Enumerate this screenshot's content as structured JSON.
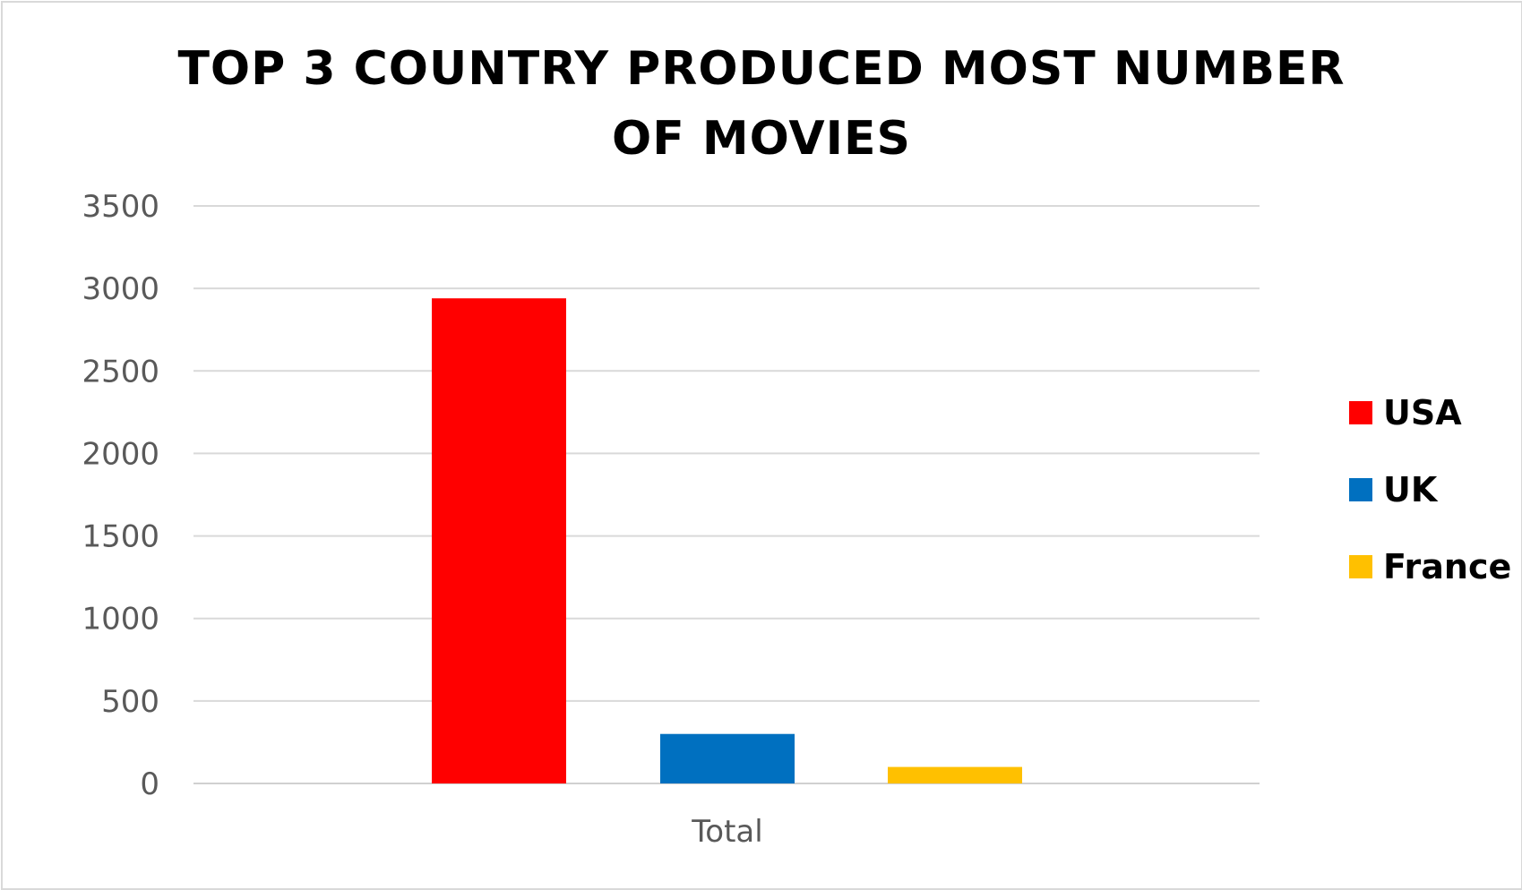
{
  "chart_data": {
    "type": "bar",
    "title": "TOP 3 COUNTRY PRODUCED MOST NUMBER OF MOVIES",
    "categories": [
      "Total"
    ],
    "series": [
      {
        "name": "USA",
        "values": [
          2940
        ],
        "color": "#ff0000"
      },
      {
        "name": "UK",
        "values": [
          300
        ],
        "color": "#0070c0"
      },
      {
        "name": "France",
        "values": [
          100
        ],
        "color": "#ffc000"
      }
    ],
    "ylim": [
      0,
      3500
    ],
    "yticks": [
      "0",
      "500",
      "1000",
      "1500",
      "2000",
      "2500",
      "3000",
      "3500"
    ],
    "grid": true,
    "legend": "right"
  }
}
